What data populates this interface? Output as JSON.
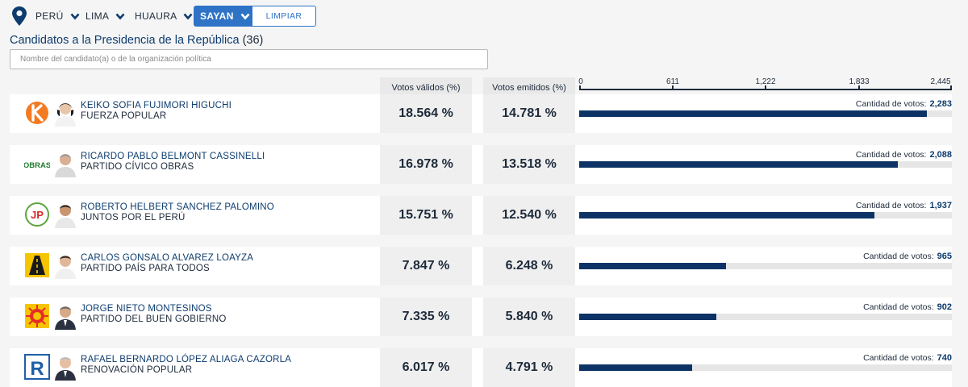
{
  "filters": {
    "items": [
      "PERÚ",
      "LIMA",
      "HUAURA"
    ],
    "active": "SAYAN",
    "clear_label": "LIMPIAR",
    "icon": "location-pin-icon"
  },
  "heading": {
    "title": "Candidatos a la Presidencia de la República",
    "count": "(36)"
  },
  "search": {
    "placeholder": "Nombre del candidato(a) o de la organización política"
  },
  "columns": {
    "valid": "Votos válidos (%)",
    "emitted": "Votos emitidos (%)"
  },
  "axis": {
    "max": 2445,
    "ticks": [
      "0",
      "611",
      "1,222",
      "1,833",
      "2,445"
    ],
    "tick_values": [
      0,
      611,
      1222,
      1833,
      2445
    ]
  },
  "votes_label": "Cantidad de votos:",
  "colors": {
    "accent": "#2e73c6",
    "bar": "#0d3366",
    "track": "#e6e6e6"
  },
  "candidates": [
    {
      "name": "KEIKO SOFIA FUJIMORI HIGUCHI",
      "party": "FUERZA POPULAR",
      "valid": "18.564 %",
      "emitted": "14.781 %",
      "votes": 2283,
      "votes_label": "2,283",
      "logo": "fuerza-popular-logo"
    },
    {
      "name": "RICARDO PABLO BELMONT CASSINELLI",
      "party": "PARTIDO CÍVICO OBRAS",
      "valid": "16.978 %",
      "emitted": "13.518 %",
      "votes": 2088,
      "votes_label": "2,088",
      "logo": "obras-logo",
      "logo_text": "OBRAS"
    },
    {
      "name": "ROBERTO HELBERT SANCHEZ PALOMINO",
      "party": "JUNTOS POR EL PERÚ",
      "valid": "15.751 %",
      "emitted": "12.540 %",
      "votes": 1937,
      "votes_label": "1,937",
      "logo": "juntos-por-el-peru-logo",
      "logo_text": "JP"
    },
    {
      "name": "CARLOS GONSALO ALVAREZ LOAYZA",
      "party": "PARTIDO PAÍS PARA TODOS",
      "valid": "7.847 %",
      "emitted": "6.248 %",
      "votes": 965,
      "votes_label": "965",
      "logo": "pais-para-todos-logo"
    },
    {
      "name": "JORGE NIETO MONTESINOS",
      "party": "PARTIDO DEL BUEN GOBIERNO",
      "valid": "7.335 %",
      "emitted": "5.840 %",
      "votes": 902,
      "votes_label": "902",
      "logo": "buen-gobierno-logo"
    },
    {
      "name": "RAFAEL BERNARDO LÓPEZ ALIAGA CAZORLA",
      "party": "RENOVACIÓN POPULAR",
      "valid": "6.017 %",
      "emitted": "4.791 %",
      "votes": 740,
      "votes_label": "740",
      "logo": "renovacion-popular-logo",
      "logo_text": "R"
    }
  ]
}
